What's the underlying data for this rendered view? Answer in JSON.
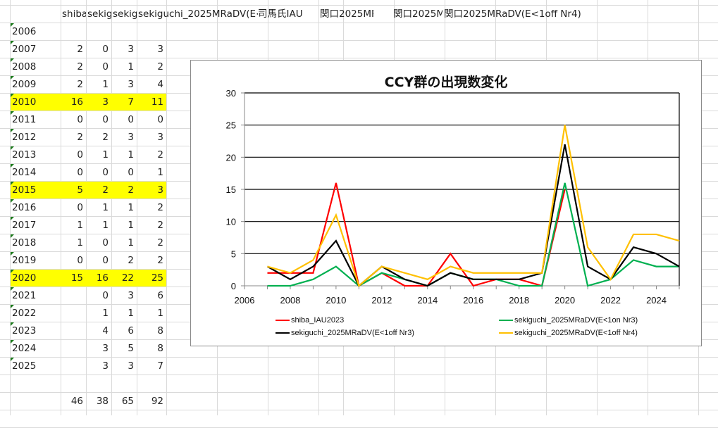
{
  "spreadsheet": {
    "headers": [
      "shiba_IAU2023",
      "sekiguchi_2025MRaDV(E<1on Nr3)",
      "sekiguchi_2025MRaDV(E<1off Nr3)",
      "sekiguchi_2025MRaDV(E<司馬氏IAU",
      "関口2025MRaD",
      "関口2025M",
      "関口2025MRaDV(E<1off Nr4)"
    ],
    "header_visible": [
      "shiba",
      "sekig",
      "sekig",
      "sekiguchi_2025MRaDV(E<",
      "司馬氏IAU",
      "関口2025MRaD",
      "関口2025M",
      "関口2025MRaDV(E<1off Nr4)"
    ],
    "rows": [
      {
        "year": "2006",
        "shiba": "",
        "on_nr3": "",
        "off_nr3": "",
        "off_nr4": "",
        "highlight": false
      },
      {
        "year": "2007",
        "shiba": "2",
        "on_nr3": "0",
        "off_nr3": "3",
        "off_nr4": "3",
        "highlight": false
      },
      {
        "year": "2008",
        "shiba": "2",
        "on_nr3": "0",
        "off_nr3": "1",
        "off_nr4": "2",
        "highlight": false
      },
      {
        "year": "2009",
        "shiba": "2",
        "on_nr3": "1",
        "off_nr3": "3",
        "off_nr4": "4",
        "highlight": false
      },
      {
        "year": "2010",
        "shiba": "16",
        "on_nr3": "3",
        "off_nr3": "7",
        "off_nr4": "11",
        "highlight": true
      },
      {
        "year": "2011",
        "shiba": "0",
        "on_nr3": "0",
        "off_nr3": "0",
        "off_nr4": "0",
        "highlight": false
      },
      {
        "year": "2012",
        "shiba": "2",
        "on_nr3": "2",
        "off_nr3": "3",
        "off_nr4": "3",
        "highlight": false
      },
      {
        "year": "2013",
        "shiba": "0",
        "on_nr3": "1",
        "off_nr3": "1",
        "off_nr4": "2",
        "highlight": false
      },
      {
        "year": "2014",
        "shiba": "0",
        "on_nr3": "0",
        "off_nr3": "0",
        "off_nr4": "1",
        "highlight": false
      },
      {
        "year": "2015",
        "shiba": "5",
        "on_nr3": "2",
        "off_nr3": "2",
        "off_nr4": "3",
        "highlight": true
      },
      {
        "year": "2016",
        "shiba": "0",
        "on_nr3": "1",
        "off_nr3": "1",
        "off_nr4": "2",
        "highlight": false
      },
      {
        "year": "2017",
        "shiba": "1",
        "on_nr3": "1",
        "off_nr3": "1",
        "off_nr4": "2",
        "highlight": false
      },
      {
        "year": "2018",
        "shiba": "1",
        "on_nr3": "0",
        "off_nr3": "1",
        "off_nr4": "2",
        "highlight": false
      },
      {
        "year": "2019",
        "shiba": "0",
        "on_nr3": "0",
        "off_nr3": "2",
        "off_nr4": "2",
        "highlight": false
      },
      {
        "year": "2020",
        "shiba": "15",
        "on_nr3": "16",
        "off_nr3": "22",
        "off_nr4": "25",
        "highlight": true
      },
      {
        "year": "2021",
        "shiba": "",
        "on_nr3": "0",
        "off_nr3": "3",
        "off_nr4": "6",
        "highlight": false
      },
      {
        "year": "2022",
        "shiba": "",
        "on_nr3": "1",
        "off_nr3": "1",
        "off_nr4": "1",
        "highlight": false
      },
      {
        "year": "2023",
        "shiba": "",
        "on_nr3": "4",
        "off_nr3": "6",
        "off_nr4": "8",
        "highlight": false
      },
      {
        "year": "2024",
        "shiba": "",
        "on_nr3": "3",
        "off_nr3": "5",
        "off_nr4": "8",
        "highlight": false
      },
      {
        "year": "2025",
        "shiba": "",
        "on_nr3": "3",
        "off_nr3": "3",
        "off_nr4": "7",
        "highlight": false
      }
    ],
    "totals": {
      "shiba": "46",
      "on_nr3": "38",
      "off_nr3": "65",
      "off_nr4": "92"
    },
    "highlight_color": "#ffff00"
  },
  "chart_data": {
    "type": "line",
    "title": "CCY群の出現数変化",
    "xlabel": "",
    "ylabel": "",
    "xlim": [
      2006,
      2025
    ],
    "ylim": [
      0,
      30
    ],
    "yticks": [
      "0",
      "5",
      "10",
      "15",
      "20",
      "25",
      "30"
    ],
    "xticks": [
      "2006",
      "2008",
      "2010",
      "2012",
      "2014",
      "2016",
      "2018",
      "2020",
      "2022",
      "2024"
    ],
    "grid": true,
    "legend_position": "bottom",
    "x": [
      2007,
      2008,
      2009,
      2010,
      2011,
      2012,
      2013,
      2014,
      2015,
      2016,
      2017,
      2018,
      2019,
      2020,
      2021,
      2022,
      2023,
      2024,
      2025
    ],
    "series": [
      {
        "name": "shiba_IAU2023",
        "color": "#ff0000",
        "values": [
          2,
          2,
          2,
          16,
          0,
          2,
          0,
          0,
          5,
          0,
          1,
          1,
          0,
          15,
          null,
          null,
          null,
          null,
          null
        ]
      },
      {
        "name": "sekiguchi_2025MRaDV(E<1on Nr3)",
        "color": "#00b050",
        "values": [
          0,
          0,
          1,
          3,
          0,
          2,
          1,
          0,
          2,
          1,
          1,
          0,
          0,
          16,
          0,
          1,
          4,
          3,
          3
        ]
      },
      {
        "name": "sekiguchi_2025MRaDV(E<1off Nr3)",
        "color": "#000000",
        "values": [
          3,
          1,
          3,
          7,
          0,
          3,
          1,
          0,
          2,
          1,
          1,
          1,
          2,
          22,
          3,
          1,
          6,
          5,
          3
        ]
      },
      {
        "name": "sekiguchi_2025MRaDV(E<1off Nr4)",
        "color": "#ffc000",
        "values": [
          3,
          2,
          4,
          11,
          0,
          3,
          2,
          1,
          3,
          2,
          2,
          2,
          2,
          25,
          6,
          1,
          8,
          8,
          7
        ]
      }
    ]
  }
}
